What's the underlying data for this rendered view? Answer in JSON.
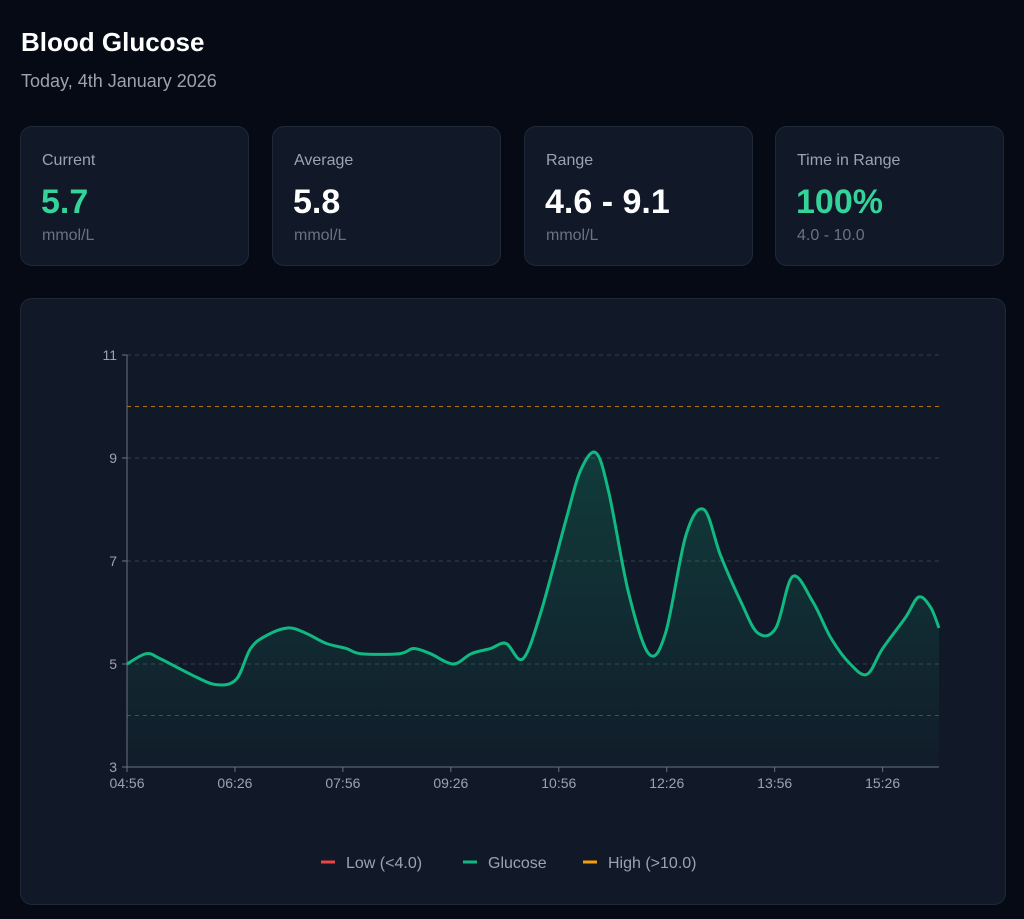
{
  "header": {
    "title": "Blood Glucose",
    "date": "Today, 4th January 2026"
  },
  "cards": [
    {
      "label": "Current",
      "value": "5.7",
      "unit": "mmol/L",
      "accent": true
    },
    {
      "label": "Average",
      "value": "5.8",
      "unit": "mmol/L",
      "accent": false
    },
    {
      "label": "Range",
      "value": "4.6 - 9.1",
      "unit": "mmol/L",
      "accent": false
    },
    {
      "label": "Time in Range",
      "value": "100%",
      "unit": "4.0 - 10.0",
      "accent": true
    }
  ],
  "colors": {
    "glucose": "#10b981",
    "low": "#ef4444",
    "high": "#f59e0b",
    "accent": "#34d399"
  },
  "chart_data": {
    "type": "line",
    "title": "",
    "xlabel": "",
    "ylabel": "",
    "ylim": [
      3,
      11
    ],
    "yticks": [
      "3",
      "5",
      "7",
      "9",
      "11"
    ],
    "xlim": [
      "04:56",
      "16:13"
    ],
    "xticks": [
      "04:56",
      "06:26",
      "07:56",
      "09:26",
      "10:56",
      "12:26",
      "13:56",
      "15:26"
    ],
    "thresholds": {
      "low": 4.0,
      "high": 10.0
    },
    "legend": [
      "Low (<4.0)",
      "Glucose",
      "High (>10.0)"
    ],
    "legend_position": "bottom",
    "series": [
      {
        "name": "Glucose",
        "points": [
          [
            "04:56",
            5.0
          ],
          [
            "05:12",
            5.2
          ],
          [
            "05:24",
            5.1
          ],
          [
            "05:49",
            4.8
          ],
          [
            "06:10",
            4.6
          ],
          [
            "06:27",
            4.7
          ],
          [
            "06:39",
            5.3
          ],
          [
            "06:52",
            5.55
          ],
          [
            "07:10",
            5.7
          ],
          [
            "07:25",
            5.6
          ],
          [
            "07:42",
            5.4
          ],
          [
            "07:59",
            5.3
          ],
          [
            "08:11",
            5.2
          ],
          [
            "08:43",
            5.2
          ],
          [
            "08:55",
            5.3
          ],
          [
            "09:09",
            5.2
          ],
          [
            "09:28",
            5.0
          ],
          [
            "09:43",
            5.2
          ],
          [
            "09:59",
            5.3
          ],
          [
            "10:12",
            5.4
          ],
          [
            "10:26",
            5.1
          ],
          [
            "10:41",
            6.0
          ],
          [
            "11:02",
            7.8
          ],
          [
            "11:14",
            8.75
          ],
          [
            "11:27",
            9.1
          ],
          [
            "11:38",
            8.3
          ],
          [
            "11:54",
            6.4
          ],
          [
            "12:11",
            5.2
          ],
          [
            "12:25",
            5.6
          ],
          [
            "12:42",
            7.5
          ],
          [
            "12:57",
            8.0
          ],
          [
            "13:11",
            7.1
          ],
          [
            "13:28",
            6.2
          ],
          [
            "13:42",
            5.6
          ],
          [
            "13:57",
            5.7
          ],
          [
            "14:11",
            6.7
          ],
          [
            "14:28",
            6.2
          ],
          [
            "14:43",
            5.5
          ],
          [
            "14:59",
            5.0
          ],
          [
            "15:13",
            4.8
          ],
          [
            "15:26",
            5.3
          ],
          [
            "15:45",
            5.9
          ],
          [
            "15:56",
            6.3
          ],
          [
            "16:06",
            6.1
          ],
          [
            "16:13",
            5.7
          ]
        ]
      }
    ]
  }
}
